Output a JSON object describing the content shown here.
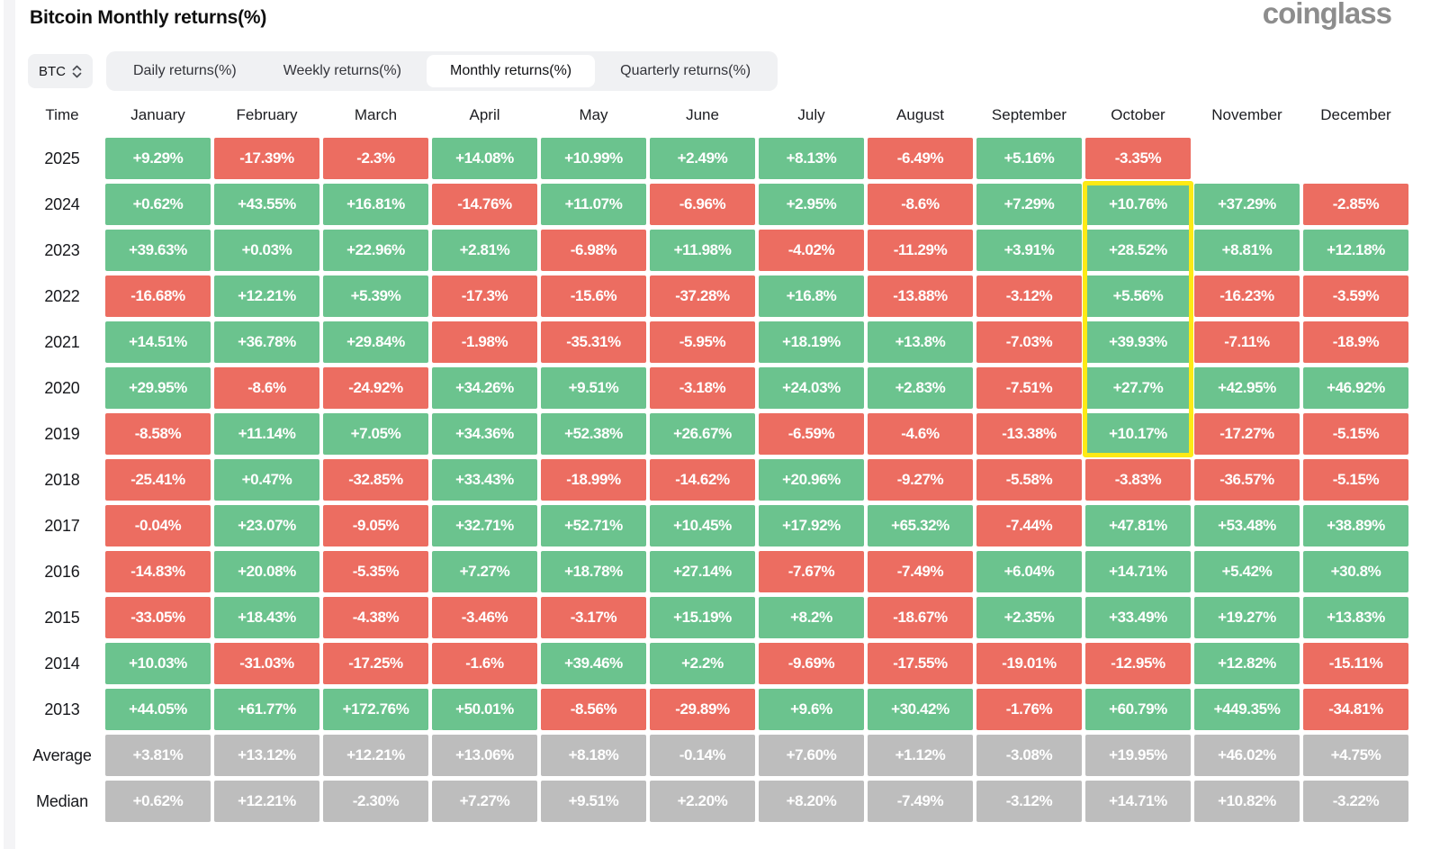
{
  "page": {
    "title": "Bitcoin Monthly returns(%)",
    "brand": "coinglass"
  },
  "controls": {
    "symbol": "BTC",
    "symbol_selector_icon": "up-down-chevron-icon",
    "tabs": [
      {
        "label": "Daily returns(%)",
        "selected": false
      },
      {
        "label": "Weekly returns(%)",
        "selected": false
      },
      {
        "label": "Monthly returns(%)",
        "selected": true
      },
      {
        "label": "Quarterly returns(%)",
        "selected": false
      }
    ]
  },
  "colors": {
    "positive": "#6bc38e",
    "negative": "#ec6d61",
    "summary": "#bdbdbd",
    "highlight": "#fdea16",
    "chip_bg": "#f0f1f3",
    "brand_gray": "#8d8d8d",
    "cell_text": "#ffffff"
  },
  "table": {
    "time_header": "Time",
    "month_headers": [
      "January",
      "February",
      "March",
      "April",
      "May",
      "June",
      "July",
      "August",
      "September",
      "October",
      "November",
      "December"
    ],
    "rows": [
      {
        "label": "2025",
        "type": "year",
        "values": [
          "+9.29%",
          "-17.39%",
          "-2.3%",
          "+14.08%",
          "+10.99%",
          "+2.49%",
          "+8.13%",
          "-6.49%",
          "+5.16%",
          "-3.35%",
          null,
          null
        ]
      },
      {
        "label": "2024",
        "type": "year",
        "values": [
          "+0.62%",
          "+43.55%",
          "+16.81%",
          "-14.76%",
          "+11.07%",
          "-6.96%",
          "+2.95%",
          "-8.6%",
          "+7.29%",
          "+10.76%",
          "+37.29%",
          "-2.85%"
        ]
      },
      {
        "label": "2023",
        "type": "year",
        "values": [
          "+39.63%",
          "+0.03%",
          "+22.96%",
          "+2.81%",
          "-6.98%",
          "+11.98%",
          "-4.02%",
          "-11.29%",
          "+3.91%",
          "+28.52%",
          "+8.81%",
          "+12.18%"
        ]
      },
      {
        "label": "2022",
        "type": "year",
        "values": [
          "-16.68%",
          "+12.21%",
          "+5.39%",
          "-17.3%",
          "-15.6%",
          "-37.28%",
          "+16.8%",
          "-13.88%",
          "-3.12%",
          "+5.56%",
          "-16.23%",
          "-3.59%"
        ]
      },
      {
        "label": "2021",
        "type": "year",
        "values": [
          "+14.51%",
          "+36.78%",
          "+29.84%",
          "-1.98%",
          "-35.31%",
          "-5.95%",
          "+18.19%",
          "+13.8%",
          "-7.03%",
          "+39.93%",
          "-7.11%",
          "-18.9%"
        ]
      },
      {
        "label": "2020",
        "type": "year",
        "values": [
          "+29.95%",
          "-8.6%",
          "-24.92%",
          "+34.26%",
          "+9.51%",
          "-3.18%",
          "+24.03%",
          "+2.83%",
          "-7.51%",
          "+27.7%",
          "+42.95%",
          "+46.92%"
        ]
      },
      {
        "label": "2019",
        "type": "year",
        "values": [
          "-8.58%",
          "+11.14%",
          "+7.05%",
          "+34.36%",
          "+52.38%",
          "+26.67%",
          "-6.59%",
          "-4.6%",
          "-13.38%",
          "+10.17%",
          "-17.27%",
          "-5.15%"
        ]
      },
      {
        "label": "2018",
        "type": "year",
        "values": [
          "-25.41%",
          "+0.47%",
          "-32.85%",
          "+33.43%",
          "-18.99%",
          "-14.62%",
          "+20.96%",
          "-9.27%",
          "-5.58%",
          "-3.83%",
          "-36.57%",
          "-5.15%"
        ]
      },
      {
        "label": "2017",
        "type": "year",
        "values": [
          "-0.04%",
          "+23.07%",
          "-9.05%",
          "+32.71%",
          "+52.71%",
          "+10.45%",
          "+17.92%",
          "+65.32%",
          "-7.44%",
          "+47.81%",
          "+53.48%",
          "+38.89%"
        ]
      },
      {
        "label": "2016",
        "type": "year",
        "values": [
          "-14.83%",
          "+20.08%",
          "-5.35%",
          "+7.27%",
          "+18.78%",
          "+27.14%",
          "-7.67%",
          "-7.49%",
          "+6.04%",
          "+14.71%",
          "+5.42%",
          "+30.8%"
        ]
      },
      {
        "label": "2015",
        "type": "year",
        "values": [
          "-33.05%",
          "+18.43%",
          "-4.38%",
          "-3.46%",
          "-3.17%",
          "+15.19%",
          "+8.2%",
          "-18.67%",
          "+2.35%",
          "+33.49%",
          "+19.27%",
          "+13.83%"
        ]
      },
      {
        "label": "2014",
        "type": "year",
        "values": [
          "+10.03%",
          "-31.03%",
          "-17.25%",
          "-1.6%",
          "+39.46%",
          "+2.2%",
          "-9.69%",
          "-17.55%",
          "-19.01%",
          "-12.95%",
          "+12.82%",
          "-15.11%"
        ]
      },
      {
        "label": "2013",
        "type": "year",
        "values": [
          "+44.05%",
          "+61.77%",
          "+172.76%",
          "+50.01%",
          "-8.56%",
          "-29.89%",
          "+9.6%",
          "+30.42%",
          "-1.76%",
          "+60.79%",
          "+449.35%",
          "-34.81%"
        ]
      },
      {
        "label": "Average",
        "type": "summary",
        "values": [
          "+3.81%",
          "+13.12%",
          "+12.21%",
          "+13.06%",
          "+8.18%",
          "-0.14%",
          "+7.60%",
          "+1.12%",
          "-3.08%",
          "+19.95%",
          "+46.02%",
          "+4.75%"
        ]
      },
      {
        "label": "Median",
        "type": "summary",
        "values": [
          "+0.62%",
          "+12.21%",
          "-2.30%",
          "+7.27%",
          "+9.51%",
          "+2.20%",
          "+8.20%",
          "-7.49%",
          "-3.12%",
          "+14.71%",
          "+10.82%",
          "-3.22%"
        ]
      }
    ]
  },
  "highlight": {
    "column": "October",
    "column_index": 9,
    "row_start_index": 1,
    "row_end_index": 6,
    "from_row": "2024",
    "to_row": "2019",
    "color": "#fdea16"
  },
  "chart_data": {
    "type": "heatmap",
    "title": "Bitcoin Monthly returns(%)",
    "columns": [
      "January",
      "February",
      "March",
      "April",
      "May",
      "June",
      "July",
      "August",
      "September",
      "October",
      "November",
      "December"
    ],
    "rows": [
      "2025",
      "2024",
      "2023",
      "2022",
      "2021",
      "2020",
      "2019",
      "2018",
      "2017",
      "2016",
      "2015",
      "2014",
      "2013",
      "Average",
      "Median"
    ],
    "values": [
      [
        9.29,
        -17.39,
        -2.3,
        14.08,
        10.99,
        2.49,
        8.13,
        -6.49,
        5.16,
        -3.35,
        null,
        null
      ],
      [
        0.62,
        43.55,
        16.81,
        -14.76,
        11.07,
        -6.96,
        2.95,
        -8.6,
        7.29,
        10.76,
        37.29,
        -2.85
      ],
      [
        39.63,
        0.03,
        22.96,
        2.81,
        -6.98,
        11.98,
        -4.02,
        -11.29,
        3.91,
        28.52,
        8.81,
        12.18
      ],
      [
        -16.68,
        12.21,
        5.39,
        -17.3,
        -15.6,
        -37.28,
        16.8,
        -13.88,
        -3.12,
        5.56,
        -16.23,
        -3.59
      ],
      [
        14.51,
        36.78,
        29.84,
        -1.98,
        -35.31,
        -5.95,
        18.19,
        13.8,
        -7.03,
        39.93,
        -7.11,
        -18.9
      ],
      [
        29.95,
        -8.6,
        -24.92,
        34.26,
        9.51,
        -3.18,
        24.03,
        2.83,
        -7.51,
        27.7,
        42.95,
        46.92
      ],
      [
        -8.58,
        11.14,
        7.05,
        34.36,
        52.38,
        26.67,
        -6.59,
        -4.6,
        -13.38,
        10.17,
        -17.27,
        -5.15
      ],
      [
        -25.41,
        0.47,
        -32.85,
        33.43,
        -18.99,
        -14.62,
        20.96,
        -9.27,
        -5.58,
        -3.83,
        -36.57,
        -5.15
      ],
      [
        -0.04,
        23.07,
        -9.05,
        32.71,
        52.71,
        10.45,
        17.92,
        65.32,
        -7.44,
        47.81,
        53.48,
        38.89
      ],
      [
        -14.83,
        20.08,
        -5.35,
        7.27,
        18.78,
        27.14,
        -7.67,
        -7.49,
        6.04,
        14.71,
        5.42,
        30.8
      ],
      [
        -33.05,
        18.43,
        -4.38,
        -3.46,
        -3.17,
        15.19,
        8.2,
        -18.67,
        2.35,
        33.49,
        19.27,
        13.83
      ],
      [
        10.03,
        -31.03,
        -17.25,
        -1.6,
        39.46,
        2.2,
        -9.69,
        -17.55,
        -19.01,
        -12.95,
        12.82,
        -15.11
      ],
      [
        44.05,
        61.77,
        172.76,
        50.01,
        -8.56,
        -29.89,
        9.6,
        30.42,
        -1.76,
        60.79,
        449.35,
        -34.81
      ],
      [
        3.81,
        13.12,
        12.21,
        13.06,
        8.18,
        -0.14,
        7.6,
        1.12,
        -3.08,
        19.95,
        46.02,
        4.75
      ],
      [
        0.62,
        12.21,
        -2.3,
        7.27,
        9.51,
        2.2,
        8.2,
        -7.49,
        -3.12,
        14.71,
        10.82,
        -3.22
      ]
    ]
  }
}
